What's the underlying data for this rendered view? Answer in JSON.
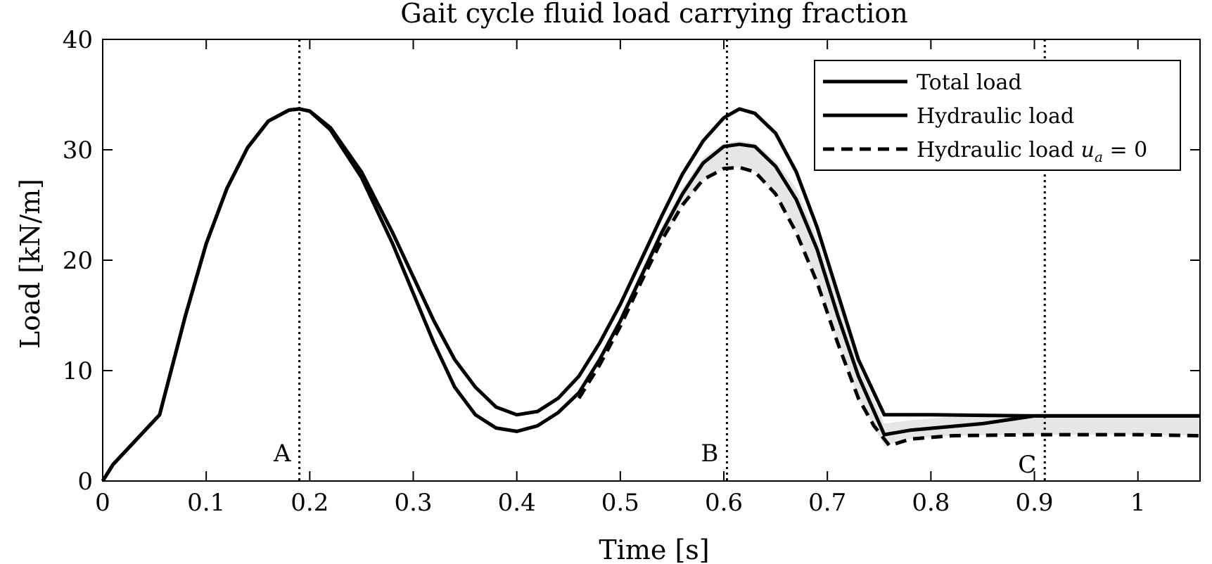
{
  "chart_data": {
    "type": "line",
    "title": "Gait cycle fluid load carrying fraction",
    "xlabel": "Time [s]",
    "ylabel": "Load [kN/m]",
    "xlim": [
      0,
      1.06
    ],
    "ylim": [
      0,
      40
    ],
    "xticks": [
      0,
      0.1,
      0.2,
      0.3,
      0.4,
      0.5,
      0.6,
      0.7,
      0.8,
      0.9,
      1
    ],
    "xtick_labels": [
      "0",
      "0.1",
      "0.2",
      "0.3",
      "0.4",
      "0.5",
      "0.6",
      "0.7",
      "0.8",
      "0.9",
      "1"
    ],
    "yticks": [
      0,
      10,
      20,
      30,
      40
    ],
    "ytick_labels": [
      "0",
      "10",
      "20",
      "30",
      "40"
    ],
    "grid": false,
    "legend_position": "top-right",
    "series": [
      {
        "name": "Total load",
        "style": "solid",
        "color": "#000000",
        "x": [
          0,
          0.01,
          0.03,
          0.055,
          0.08,
          0.1,
          0.12,
          0.14,
          0.16,
          0.18,
          0.19,
          0.2,
          0.22,
          0.25,
          0.28,
          0.3,
          0.32,
          0.34,
          0.36,
          0.38,
          0.4,
          0.42,
          0.44,
          0.46,
          0.48,
          0.5,
          0.52,
          0.54,
          0.56,
          0.58,
          0.6,
          0.615,
          0.63,
          0.65,
          0.67,
          0.69,
          0.71,
          0.73,
          0.755,
          0.8,
          0.9,
          1,
          1.06
        ],
        "y": [
          0,
          1.5,
          3.5,
          6.0,
          15.0,
          21.5,
          26.5,
          30.2,
          32.6,
          33.6,
          33.7,
          33.5,
          32.0,
          28.0,
          22.5,
          18.5,
          14.5,
          11.0,
          8.5,
          6.7,
          6.0,
          6.3,
          7.5,
          9.5,
          12.5,
          16.0,
          20.0,
          24.0,
          27.8,
          30.8,
          32.9,
          33.7,
          33.3,
          31.5,
          28.0,
          23.0,
          17.0,
          11.0,
          6.0,
          6.0,
          5.9,
          5.9,
          5.9
        ]
      },
      {
        "name": "Hydraulic load",
        "style": "solid",
        "color": "#000000",
        "x": [
          0,
          0.01,
          0.03,
          0.055,
          0.08,
          0.1,
          0.12,
          0.14,
          0.16,
          0.18,
          0.19,
          0.2,
          0.22,
          0.25,
          0.28,
          0.3,
          0.32,
          0.34,
          0.36,
          0.38,
          0.4,
          0.42,
          0.44,
          0.46,
          0.48,
          0.5,
          0.52,
          0.54,
          0.56,
          0.58,
          0.6,
          0.615,
          0.63,
          0.65,
          0.67,
          0.69,
          0.71,
          0.73,
          0.755,
          0.78,
          0.85,
          0.9,
          0.95,
          1,
          1.06
        ],
        "y": [
          0,
          1.5,
          3.5,
          6.0,
          15.0,
          21.5,
          26.5,
          30.2,
          32.6,
          33.6,
          33.7,
          33.5,
          31.8,
          27.5,
          21.5,
          17.0,
          12.5,
          8.5,
          6.0,
          4.8,
          4.5,
          5.0,
          6.2,
          8.0,
          11.0,
          14.5,
          18.5,
          22.5,
          26.0,
          28.8,
          30.3,
          30.5,
          30.3,
          28.5,
          25.5,
          21.0,
          15.0,
          9.5,
          4.2,
          4.6,
          5.2,
          5.9,
          5.9,
          5.9,
          5.9
        ]
      },
      {
        "name": "Hydraulic load u_a = 0",
        "style": "dashed",
        "color": "#000000",
        "x": [
          0.46,
          0.48,
          0.5,
          0.52,
          0.54,
          0.56,
          0.58,
          0.6,
          0.615,
          0.63,
          0.65,
          0.67,
          0.69,
          0.71,
          0.73,
          0.745,
          0.76,
          0.78,
          0.82,
          0.9,
          1,
          1.06
        ],
        "y": [
          7.5,
          10.5,
          14.0,
          18.0,
          21.8,
          25.0,
          27.3,
          28.3,
          28.4,
          28.0,
          26.0,
          22.5,
          18.0,
          12.5,
          7.5,
          5.0,
          3.2,
          3.8,
          4.1,
          4.2,
          4.2,
          4.1
        ]
      }
    ],
    "shaded_band": {
      "description_color": "#e6e6e6",
      "x": [
        0.5,
        0.52,
        0.54,
        0.56,
        0.58,
        0.6,
        0.615,
        0.63,
        0.65,
        0.67,
        0.69,
        0.71,
        0.73,
        0.755,
        0.78,
        0.82,
        0.9,
        1,
        1.06
      ],
      "upper": [
        15.0,
        19.0,
        23.0,
        26.5,
        29.3,
        30.6,
        30.8,
        30.6,
        29.0,
        26.5,
        22.0,
        16.5,
        10.5,
        5.2,
        5.5,
        5.8,
        6.0,
        5.9,
        5.9
      ],
      "lower": [
        14.0,
        18.0,
        21.8,
        25.0,
        27.3,
        28.3,
        28.4,
        28.0,
        26.0,
        22.5,
        18.0,
        12.5,
        7.5,
        3.2,
        3.8,
        4.1,
        4.2,
        4.2,
        4.1
      ]
    },
    "markers": [
      {
        "label": "A",
        "x": 0.19
      },
      {
        "label": "B",
        "x": 0.603
      },
      {
        "label": "C",
        "x": 0.91
      }
    ],
    "legend": [
      {
        "label": "Total load",
        "style": "solid"
      },
      {
        "label": "Hydraulic load",
        "style": "solid"
      },
      {
        "label": "Hydraulic load ",
        "math": "u",
        "math_sub": "a",
        "suffix": " = 0",
        "style": "dashed"
      }
    ]
  }
}
